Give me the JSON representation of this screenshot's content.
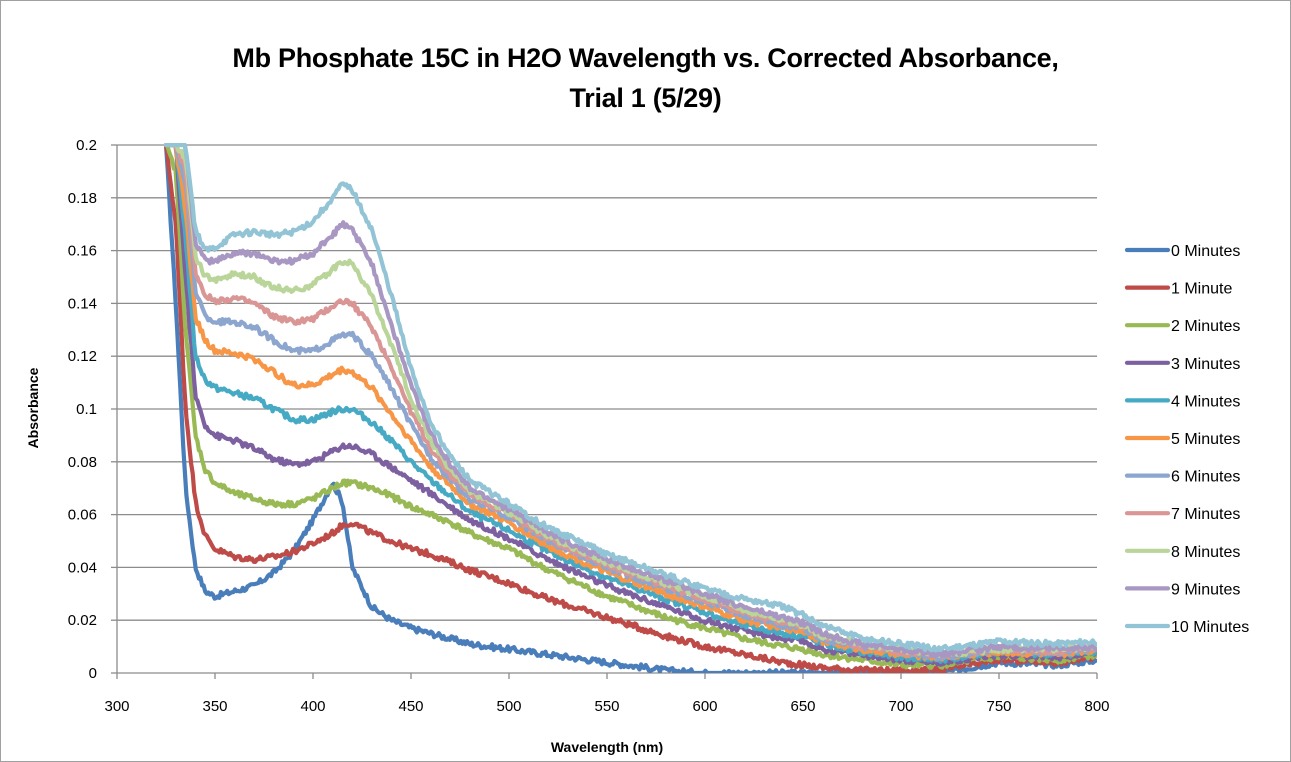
{
  "chart_data": {
    "type": "line",
    "title": "Mb Phosphate 15C in H2O Wavelength vs. Corrected Absorbance, Trial 1 (5/29)",
    "title_lines": [
      "Mb Phosphate 15C in H2O Wavelength vs. Corrected Absorbance,",
      "Trial 1 (5/29)"
    ],
    "xlabel": "Wavelength (nm)",
    "ylabel": "Absorbance",
    "xlim": [
      300,
      800
    ],
    "ylim": [
      0,
      0.2
    ],
    "xticks": [
      300,
      350,
      400,
      450,
      500,
      550,
      600,
      650,
      700,
      750,
      800
    ],
    "xtick_labels": [
      "300",
      "350",
      "400",
      "450",
      "500",
      "550",
      "600",
      "650",
      "700",
      "750",
      "800"
    ],
    "yticks": [
      0,
      0.02,
      0.04,
      0.06,
      0.08,
      0.1,
      0.12,
      0.14,
      0.16,
      0.18,
      0.2
    ],
    "ytick_labels": [
      "0",
      "0.02",
      "0.04",
      "0.06",
      "0.08",
      "0.1",
      "0.12",
      "0.14",
      "0.16",
      "0.18",
      "0.2"
    ],
    "grid": "horizontal",
    "legend_position": "right",
    "x": [
      325,
      330,
      335,
      340,
      345,
      350,
      360,
      370,
      380,
      390,
      400,
      410,
      415,
      420,
      430,
      440,
      450,
      460,
      470,
      480,
      500,
      520,
      550,
      580,
      600,
      620,
      640,
      650,
      660,
      680,
      700,
      720,
      750,
      780,
      800
    ],
    "series": [
      {
        "name": "0 Minutes",
        "color": "#4a7ebb",
        "values": [
          0.2,
          0.14,
          0.07,
          0.04,
          0.031,
          0.029,
          0.031,
          0.033,
          0.038,
          0.046,
          0.058,
          0.072,
          0.065,
          0.04,
          0.025,
          0.02,
          0.017,
          0.015,
          0.013,
          0.011,
          0.009,
          0.007,
          0.004,
          0.001,
          0.0,
          0.0,
          0.0,
          0.0,
          0.0,
          0.0,
          0.0,
          0.0,
          0.004,
          0.003,
          0.005
        ]
      },
      {
        "name": "1 Minute",
        "color": "#be4b48",
        "values": [
          0.2,
          0.17,
          0.1,
          0.065,
          0.052,
          0.047,
          0.044,
          0.043,
          0.044,
          0.046,
          0.049,
          0.053,
          0.056,
          0.057,
          0.053,
          0.05,
          0.047,
          0.045,
          0.042,
          0.039,
          0.034,
          0.028,
          0.021,
          0.014,
          0.01,
          0.007,
          0.004,
          0.003,
          0.002,
          0.001,
          0.001,
          0.001,
          0.005,
          0.004,
          0.006
        ]
      },
      {
        "name": "2 Minutes",
        "color": "#98b954",
        "values": [
          0.2,
          0.19,
          0.13,
          0.09,
          0.077,
          0.072,
          0.068,
          0.066,
          0.064,
          0.064,
          0.066,
          0.07,
          0.072,
          0.072,
          0.07,
          0.067,
          0.063,
          0.06,
          0.057,
          0.053,
          0.047,
          0.039,
          0.029,
          0.021,
          0.017,
          0.013,
          0.01,
          0.009,
          0.007,
          0.005,
          0.003,
          0.003,
          0.006,
          0.005,
          0.007
        ]
      },
      {
        "name": "3 Minutes",
        "color": "#7d60a0",
        "values": [
          0.2,
          0.2,
          0.15,
          0.105,
          0.094,
          0.09,
          0.088,
          0.085,
          0.081,
          0.079,
          0.08,
          0.084,
          0.086,
          0.086,
          0.083,
          0.078,
          0.073,
          0.068,
          0.063,
          0.058,
          0.051,
          0.043,
          0.033,
          0.025,
          0.02,
          0.016,
          0.013,
          0.012,
          0.009,
          0.007,
          0.005,
          0.004,
          0.007,
          0.006,
          0.008
        ]
      },
      {
        "name": "4 Minutes",
        "color": "#46aac5",
        "values": [
          0.2,
          0.2,
          0.165,
          0.12,
          0.111,
          0.108,
          0.106,
          0.104,
          0.1,
          0.096,
          0.096,
          0.099,
          0.1,
          0.1,
          0.095,
          0.088,
          0.08,
          0.073,
          0.067,
          0.061,
          0.054,
          0.046,
          0.036,
          0.028,
          0.023,
          0.018,
          0.015,
          0.014,
          0.011,
          0.008,
          0.006,
          0.005,
          0.008,
          0.007,
          0.008
        ]
      },
      {
        "name": "5 Minutes",
        "color": "#f79646",
        "values": [
          0.2,
          0.2,
          0.175,
          0.135,
          0.126,
          0.122,
          0.121,
          0.119,
          0.114,
          0.109,
          0.109,
          0.113,
          0.115,
          0.114,
          0.108,
          0.098,
          0.088,
          0.078,
          0.071,
          0.064,
          0.057,
          0.048,
          0.038,
          0.03,
          0.025,
          0.02,
          0.017,
          0.016,
          0.012,
          0.009,
          0.007,
          0.006,
          0.008,
          0.007,
          0.009
        ]
      },
      {
        "name": "6 Minutes",
        "color": "#8ca6cf",
        "values": [
          0.2,
          0.2,
          0.185,
          0.145,
          0.135,
          0.133,
          0.133,
          0.131,
          0.126,
          0.122,
          0.122,
          0.126,
          0.128,
          0.128,
          0.12,
          0.108,
          0.094,
          0.082,
          0.073,
          0.066,
          0.059,
          0.05,
          0.04,
          0.032,
          0.027,
          0.022,
          0.018,
          0.017,
          0.013,
          0.01,
          0.008,
          0.006,
          0.009,
          0.008,
          0.009
        ]
      },
      {
        "name": "7 Minutes",
        "color": "#d99694",
        "values": [
          0.2,
          0.2,
          0.19,
          0.152,
          0.143,
          0.141,
          0.142,
          0.14,
          0.135,
          0.133,
          0.134,
          0.139,
          0.141,
          0.14,
          0.131,
          0.116,
          0.099,
          0.085,
          0.075,
          0.068,
          0.06,
          0.051,
          0.041,
          0.033,
          0.028,
          0.023,
          0.019,
          0.018,
          0.014,
          0.01,
          0.008,
          0.007,
          0.009,
          0.008,
          0.01
        ]
      },
      {
        "name": "8 Minutes",
        "color": "#bad59a",
        "values": [
          0.2,
          0.2,
          0.195,
          0.158,
          0.15,
          0.149,
          0.151,
          0.15,
          0.146,
          0.145,
          0.147,
          0.153,
          0.156,
          0.155,
          0.143,
          0.124,
          0.104,
          0.088,
          0.077,
          0.069,
          0.061,
          0.052,
          0.042,
          0.034,
          0.029,
          0.024,
          0.02,
          0.018,
          0.014,
          0.011,
          0.009,
          0.007,
          0.009,
          0.009,
          0.01
        ]
      },
      {
        "name": "9 Minutes",
        "color": "#a897c2",
        "values": [
          0.2,
          0.2,
          0.2,
          0.163,
          0.156,
          0.156,
          0.159,
          0.159,
          0.156,
          0.156,
          0.159,
          0.166,
          0.17,
          0.168,
          0.155,
          0.132,
          0.109,
          0.091,
          0.079,
          0.07,
          0.062,
          0.053,
          0.043,
          0.035,
          0.03,
          0.025,
          0.021,
          0.019,
          0.015,
          0.011,
          0.009,
          0.007,
          0.01,
          0.009,
          0.01
        ]
      },
      {
        "name": "10 Minutes",
        "color": "#92c4d6",
        "values": [
          0.2,
          0.2,
          0.2,
          0.168,
          0.16,
          0.161,
          0.166,
          0.167,
          0.166,
          0.167,
          0.171,
          0.18,
          0.185,
          0.183,
          0.168,
          0.143,
          0.115,
          0.095,
          0.082,
          0.073,
          0.064,
          0.055,
          0.045,
          0.037,
          0.032,
          0.028,
          0.025,
          0.022,
          0.018,
          0.013,
          0.011,
          0.009,
          0.012,
          0.011,
          0.012
        ]
      }
    ]
  }
}
